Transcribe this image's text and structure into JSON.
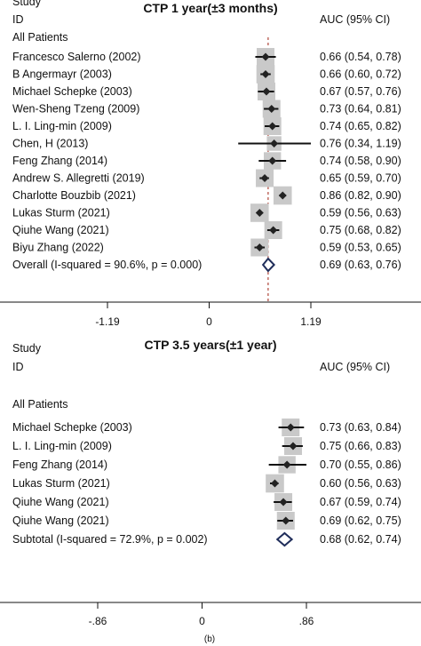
{
  "figure_label": "(b)",
  "chart_data": [
    {
      "type": "forest",
      "title": "CTP 1 year(±3 months)",
      "header_study": "Study",
      "header_id": "ID",
      "header_effect": "AUC (95% CI)",
      "group_label": "All Patients",
      "xlim": [
        -1.19,
        1.19
      ],
      "ticks": [
        {
          "value": -1.19,
          "label": "-1.19"
        },
        {
          "value": 0,
          "label": "0"
        },
        {
          "value": 1.19,
          "label": "1.19"
        }
      ],
      "reference_line": 0.69,
      "studies": [
        {
          "label": "Francesco Salerno (2002)",
          "auc": 0.66,
          "lo": 0.54,
          "hi": 0.78,
          "ci_text": "0.66 (0.54, 0.78)",
          "weight": 1.0
        },
        {
          "label": "B Angermayr (2003)",
          "auc": 0.66,
          "lo": 0.6,
          "hi": 0.72,
          "ci_text": "0.66 (0.60, 0.72)",
          "weight": 1.1
        },
        {
          "label": "Michael Schepke (2003)",
          "auc": 0.67,
          "lo": 0.57,
          "hi": 0.76,
          "ci_text": "0.67 (0.57, 0.76)",
          "weight": 1.0
        },
        {
          "label": "Wen-Sheng Tzeng (2009)",
          "auc": 0.73,
          "lo": 0.64,
          "hi": 0.81,
          "ci_text": "0.73 (0.64, 0.81)",
          "weight": 1.0
        },
        {
          "label": "L. I. Ling-min (2009)",
          "auc": 0.74,
          "lo": 0.65,
          "hi": 0.82,
          "ci_text": "0.74 (0.65, 0.82)",
          "weight": 1.0
        },
        {
          "label": "Chen, H (2013)",
          "auc": 0.76,
          "lo": 0.34,
          "hi": 1.19,
          "ci_text": "0.76 (0.34, 1.19)",
          "weight": 0.4
        },
        {
          "label": "Feng Zhang (2014)",
          "auc": 0.74,
          "lo": 0.58,
          "hi": 0.9,
          "ci_text": "0.74 (0.58, 0.90)",
          "weight": 0.9
        },
        {
          "label": "Andrew S. Allegretti (2019)",
          "auc": 0.65,
          "lo": 0.59,
          "hi": 0.7,
          "ci_text": "0.65 (0.59, 0.70)",
          "weight": 1.0
        },
        {
          "label": "Charlotte Bouzbib (2021)",
          "auc": 0.86,
          "lo": 0.82,
          "hi": 0.9,
          "ci_text": "0.86 (0.82, 0.90)",
          "weight": 1.1
        },
        {
          "label": "Lukas Sturm (2021)",
          "auc": 0.59,
          "lo": 0.56,
          "hi": 0.63,
          "ci_text": "0.59 (0.56, 0.63)",
          "weight": 1.1
        },
        {
          "label": "Qiuhe Wang (2021)",
          "auc": 0.75,
          "lo": 0.68,
          "hi": 0.82,
          "ci_text": "0.75 (0.68, 0.82)",
          "weight": 1.0
        },
        {
          "label": "Biyu Zhang (2022)",
          "auc": 0.59,
          "lo": 0.53,
          "hi": 0.65,
          "ci_text": "0.59 (0.53, 0.65)",
          "weight": 1.0
        }
      ],
      "overall": {
        "label": "Overall  (I-squared = 90.6%, p = 0.000)",
        "auc": 0.69,
        "lo": 0.63,
        "hi": 0.76,
        "ci_text": "0.69 (0.63, 0.76)"
      }
    },
    {
      "type": "forest",
      "title": "CTP 3.5 years(±1 year)",
      "header_study": "Study",
      "header_id": "ID",
      "header_effect": "AUC (95% CI)",
      "group_label": "All Patients",
      "xlim": [
        -0.86,
        0.86
      ],
      "ticks": [
        {
          "value": -0.86,
          "label": "-.86"
        },
        {
          "value": 0,
          "label": "0"
        },
        {
          "value": 0.86,
          "label": ".86"
        }
      ],
      "studies": [
        {
          "label": "Michael Schepke (2003)",
          "auc": 0.73,
          "lo": 0.63,
          "hi": 0.84,
          "ci_text": "0.73 (0.63, 0.84)",
          "weight": 1.0
        },
        {
          "label": "L. I. Ling-min (2009)",
          "auc": 0.75,
          "lo": 0.66,
          "hi": 0.83,
          "ci_text": "0.75 (0.66, 0.83)",
          "weight": 1.0
        },
        {
          "label": "Feng Zhang (2014)",
          "auc": 0.7,
          "lo": 0.55,
          "hi": 0.86,
          "ci_text": "0.70 (0.55, 0.86)",
          "weight": 0.9
        },
        {
          "label": "Lukas Sturm (2021)",
          "auc": 0.6,
          "lo": 0.56,
          "hi": 0.63,
          "ci_text": "0.60 (0.56, 0.63)",
          "weight": 1.1
        },
        {
          "label": "Qiuhe Wang (2021)",
          "auc": 0.67,
          "lo": 0.59,
          "hi": 0.74,
          "ci_text": "0.67 (0.59, 0.74)",
          "weight": 1.0
        },
        {
          "label": "Qiuhe Wang (2021)",
          "auc": 0.69,
          "lo": 0.62,
          "hi": 0.75,
          "ci_text": "0.69 (0.62, 0.75)",
          "weight": 1.0
        }
      ],
      "overall": {
        "label": "Subtotal  (I-squared = 72.9%, p = 0.002)",
        "auc": 0.68,
        "lo": 0.62,
        "hi": 0.74,
        "ci_text": "0.68 (0.62, 0.74)"
      }
    }
  ]
}
